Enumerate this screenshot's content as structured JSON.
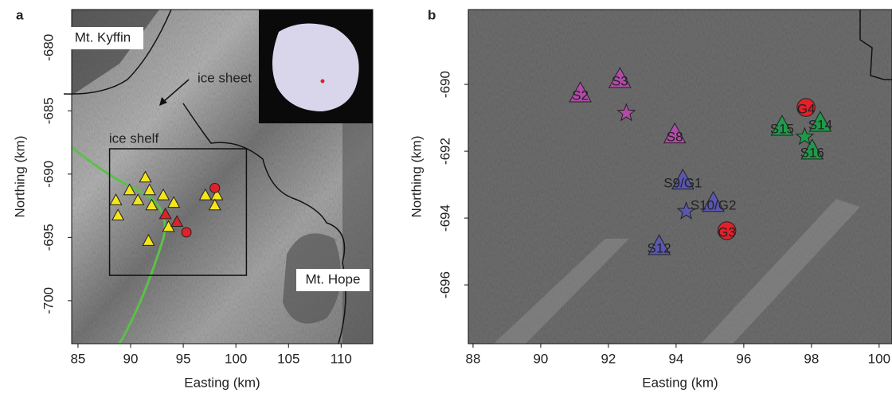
{
  "chart_data": [
    {
      "type": "scatter",
      "panel": "a",
      "xlabel": "Easting (km)",
      "ylabel": "Northing (km)",
      "xlim": [
        84.4,
        113
      ],
      "ylim": [
        -703.4,
        -677
      ],
      "xticks": [
        85,
        90,
        95,
        100,
        105,
        110
      ],
      "yticks": [
        -680,
        -685,
        -690,
        -695,
        -700
      ],
      "annotations": [
        "Mt. Kyffin",
        "ice sheet",
        "ice shelf",
        "Mt. Hope"
      ],
      "box_x": [
        88,
        101
      ],
      "box_y": [
        -698,
        -688
      ],
      "series": [
        {
          "marker": "triangle",
          "color": "#f5e61a",
          "x": [
            91.4,
            89.9,
            91.8,
            93.1,
            88.6,
            90.7,
            92.0,
            94.1,
            97.1,
            98.2,
            98.0,
            88.8,
            93.6,
            91.7
          ],
          "y": [
            -690.3,
            -691.3,
            -691.3,
            -691.7,
            -692.1,
            -692.1,
            -692.5,
            -692.3,
            -691.7,
            -691.7,
            -692.5,
            -693.3,
            -694.2,
            -695.3
          ]
        },
        {
          "marker": "triangle",
          "color": "#e0202a",
          "x": [
            93.3,
            94.4
          ],
          "y": [
            -693.2,
            -693.8
          ]
        },
        {
          "marker": "circle",
          "color": "#e0202a",
          "x": [
            98.0,
            95.3
          ],
          "y": [
            -691.1,
            -694.6
          ]
        }
      ]
    },
    {
      "type": "scatter",
      "panel": "b",
      "xlabel": "Easting (km)",
      "ylabel": "Northing (km)",
      "xlim": [
        87.86,
        100.38
      ],
      "ylim": [
        -697.76,
        -687.76
      ],
      "xticks": [
        88,
        90,
        92,
        94,
        96,
        98,
        100
      ],
      "yticks": [
        -690,
        -692,
        -694,
        -696
      ],
      "series": [
        {
          "marker": "triangle",
          "color": "#b24aa8",
          "x": [
            92.34,
            91.17,
            93.96
          ],
          "y": [
            -689.86,
            -690.29,
            -691.52
          ],
          "labels": [
            "S3",
            "S2",
            "S8"
          ]
        },
        {
          "marker": "star",
          "color": "#b24aa8",
          "x": [
            92.53
          ],
          "y": [
            -690.86
          ]
        },
        {
          "marker": "triangle",
          "color": "#5a57b0",
          "x": [
            94.2,
            95.1,
            93.5
          ],
          "y": [
            -692.9,
            -693.57,
            -694.86
          ],
          "labels": [
            "S9/G1",
            "S10/G2",
            "S12"
          ]
        },
        {
          "marker": "star",
          "color": "#5a57b0",
          "x": [
            94.3
          ],
          "y": [
            -693.8
          ]
        },
        {
          "marker": "circle",
          "color": "#e0202a",
          "x": [
            95.5,
            97.84
          ],
          "y": [
            -694.38,
            -690.69
          ],
          "labels": [
            "G3",
            "G4"
          ]
        },
        {
          "marker": "triangle",
          "color": "#1f9a4a",
          "x": [
            97.13,
            98.26,
            98.02
          ],
          "y": [
            -691.29,
            -691.17,
            -692.0
          ],
          "labels": [
            "S15",
            "S14",
            "S16"
          ]
        },
        {
          "marker": "star",
          "color": "#1f9a4a",
          "x": [
            97.8
          ],
          "y": [
            -691.57
          ]
        }
      ]
    }
  ]
}
